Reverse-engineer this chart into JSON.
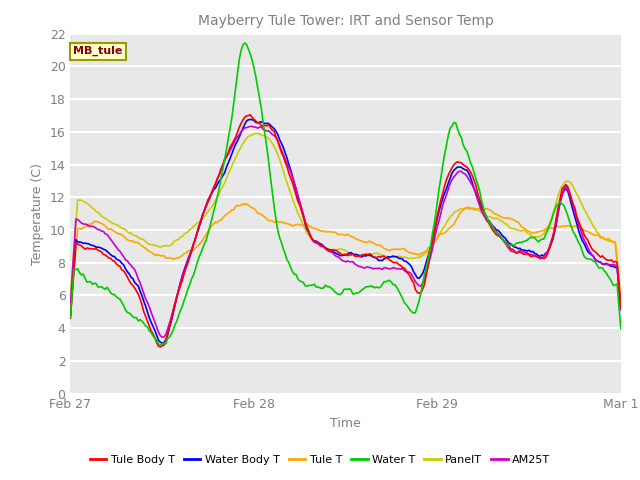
{
  "title": "Mayberry Tule Tower: IRT and Sensor Temp",
  "ylabel": "Temperature (C)",
  "xlabel": "Time",
  "annotation": "MB_tule",
  "ylim": [
    0,
    22
  ],
  "yticks": [
    0,
    2,
    4,
    6,
    8,
    10,
    12,
    14,
    16,
    18,
    20,
    22
  ],
  "xtick_labels": [
    "Feb 27",
    "Feb 28",
    "Feb 29",
    "Mar 1"
  ],
  "xtick_positions": [
    0,
    100,
    200,
    300
  ],
  "legend_entries": [
    "Tule Body T",
    "Water Body T",
    "Tule T",
    "Water T",
    "PanelT",
    "AM25T"
  ],
  "legend_colors": [
    "#ff0000",
    "#0000ff",
    "#ffa500",
    "#00cc00",
    "#cccc00",
    "#cc00cc"
  ],
  "series_colors": {
    "tule_body": "#ff0000",
    "water_body": "#0000ff",
    "tule": "#ffa500",
    "water": "#00cc00",
    "panel": "#cccc00",
    "am25": "#cc00cc"
  },
  "plot_bg": "#e8e8e8",
  "fig_bg": "#ffffff",
  "title_color": "#808080",
  "axis_color": "#808080",
  "grid_color": "#ffffff"
}
